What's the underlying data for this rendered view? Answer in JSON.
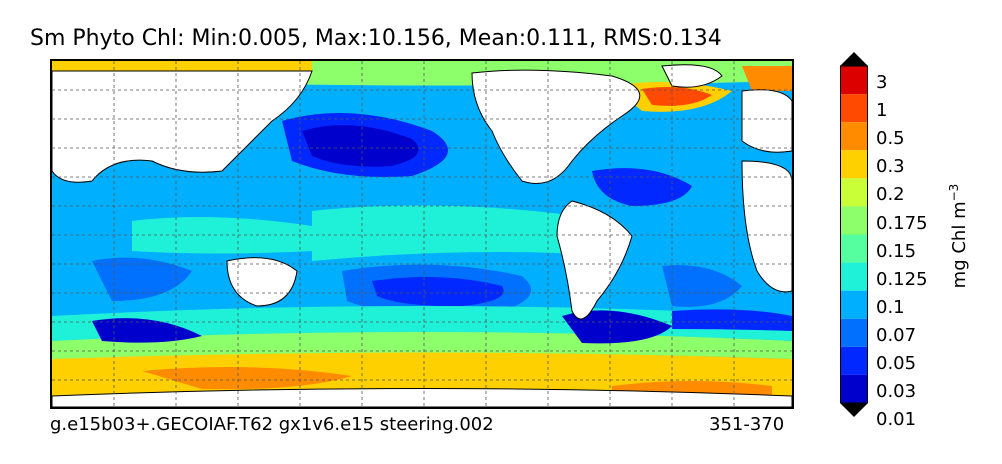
{
  "map": {
    "title": "Sm Phyto Chl: Min:0.005, Max:10.156, Mean:0.111, RMS:0.134",
    "footer_left": "g.e15b03+.GECOIAF.T62 gx1v6.e15 steering.002",
    "footer_right": "351-370"
  },
  "colorbar": {
    "label": "mg Chl m",
    "label_exponent": "−3",
    "ticks": [
      "3",
      "1",
      "0.5",
      "0.3",
      "0.2",
      "0.175",
      "0.15",
      "0.125",
      "0.1",
      "0.07",
      "0.05",
      "0.03",
      "0.01"
    ],
    "colors": [
      "#000080",
      "#0000cd",
      "#0028ff",
      "#0070ff",
      "#00b0ff",
      "#1ff0d8",
      "#55ff9f",
      "#8cff6a",
      "#c8ff36",
      "#ffd000",
      "#ff8c00",
      "#ff4a00",
      "#dd0000",
      "#800000"
    ]
  }
}
